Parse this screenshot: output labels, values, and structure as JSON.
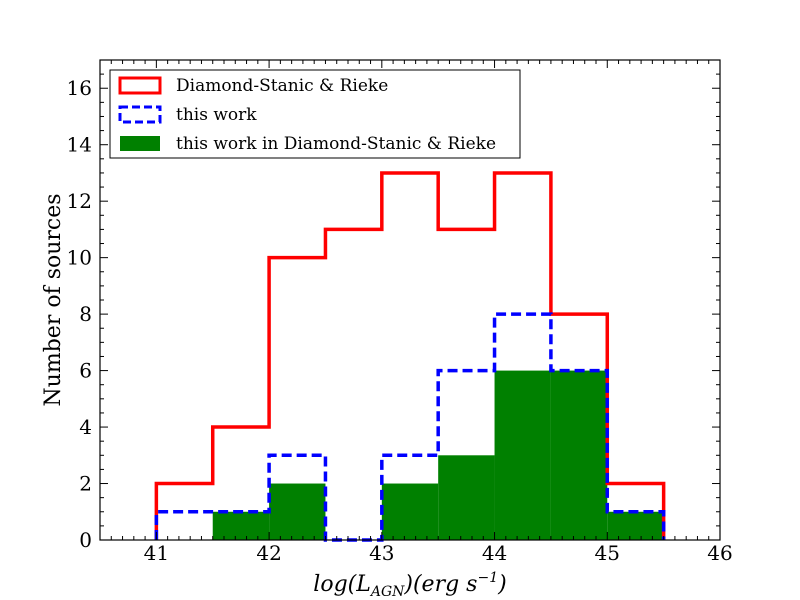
{
  "chart_data": {
    "type": "bar",
    "subtype": "histogram",
    "xlabel_parts": {
      "prefix": "log(L",
      "subscript": "AGN",
      "middle": ")(erg s",
      "superscript": "−1",
      "suffix": ")"
    },
    "ylabel": "Number of sources",
    "xlim": [
      40.5,
      46
    ],
    "ylim": [
      0,
      17
    ],
    "xticks": [
      "41",
      "42",
      "43",
      "44",
      "45",
      "46"
    ],
    "yticks": [
      "0",
      "2",
      "4",
      "6",
      "8",
      "10",
      "12",
      "14",
      "16"
    ],
    "bin_edges": [
      41.0,
      41.5,
      42.0,
      42.5,
      43.0,
      43.5,
      44.0,
      44.5,
      45.0,
      45.5
    ],
    "series": [
      {
        "name": "Diamond-Stanic & Rieke",
        "style": "step",
        "color": "#ff0000",
        "values": [
          2,
          4,
          10,
          11,
          13,
          11,
          13,
          8,
          2
        ]
      },
      {
        "name": "this work",
        "style": "step-dashed",
        "color": "#0000ff",
        "values": [
          1,
          1,
          3,
          0,
          3,
          6,
          8,
          6,
          1
        ]
      },
      {
        "name": "this work in Diamond-Stanic & Rieke",
        "style": "filled",
        "color": "#008000",
        "values": [
          0,
          1,
          2,
          0,
          2,
          3,
          6,
          6,
          1
        ]
      }
    ],
    "legend_position": "upper-left",
    "grid": false
  }
}
